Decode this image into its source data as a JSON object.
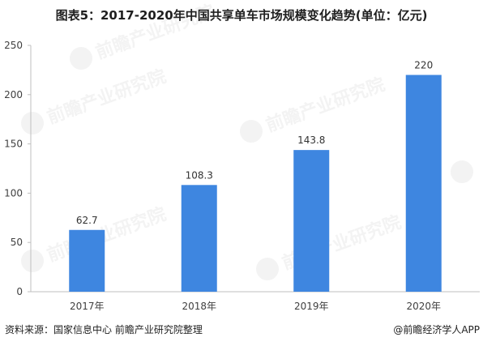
{
  "title": "图表5：2017-2020年中国共享单车市场规模变化趋势(单位：亿元)",
  "footer": {
    "source": "资料来源：国家信息中心 前瞻产业研究院整理",
    "credit": "@前瞻经济学人APP"
  },
  "watermark": {
    "text": "前瞻产业研究院",
    "icon": "qianzhan-logo-icon"
  },
  "colors": {
    "bar": "#3e86e0",
    "axis": "#bfbfbf",
    "tick_text": "#404040"
  },
  "chart_data": {
    "type": "bar",
    "categories": [
      "2017年",
      "2018年",
      "2019年",
      "2020年"
    ],
    "values": [
      62.7,
      108.3,
      143.8,
      220
    ],
    "value_labels": [
      "62.7",
      "108.3",
      "143.8",
      "220"
    ],
    "yticks": [
      0,
      50,
      100,
      150,
      200,
      250
    ],
    "ylim": [
      0,
      250
    ],
    "grid": false,
    "legend": "none"
  }
}
